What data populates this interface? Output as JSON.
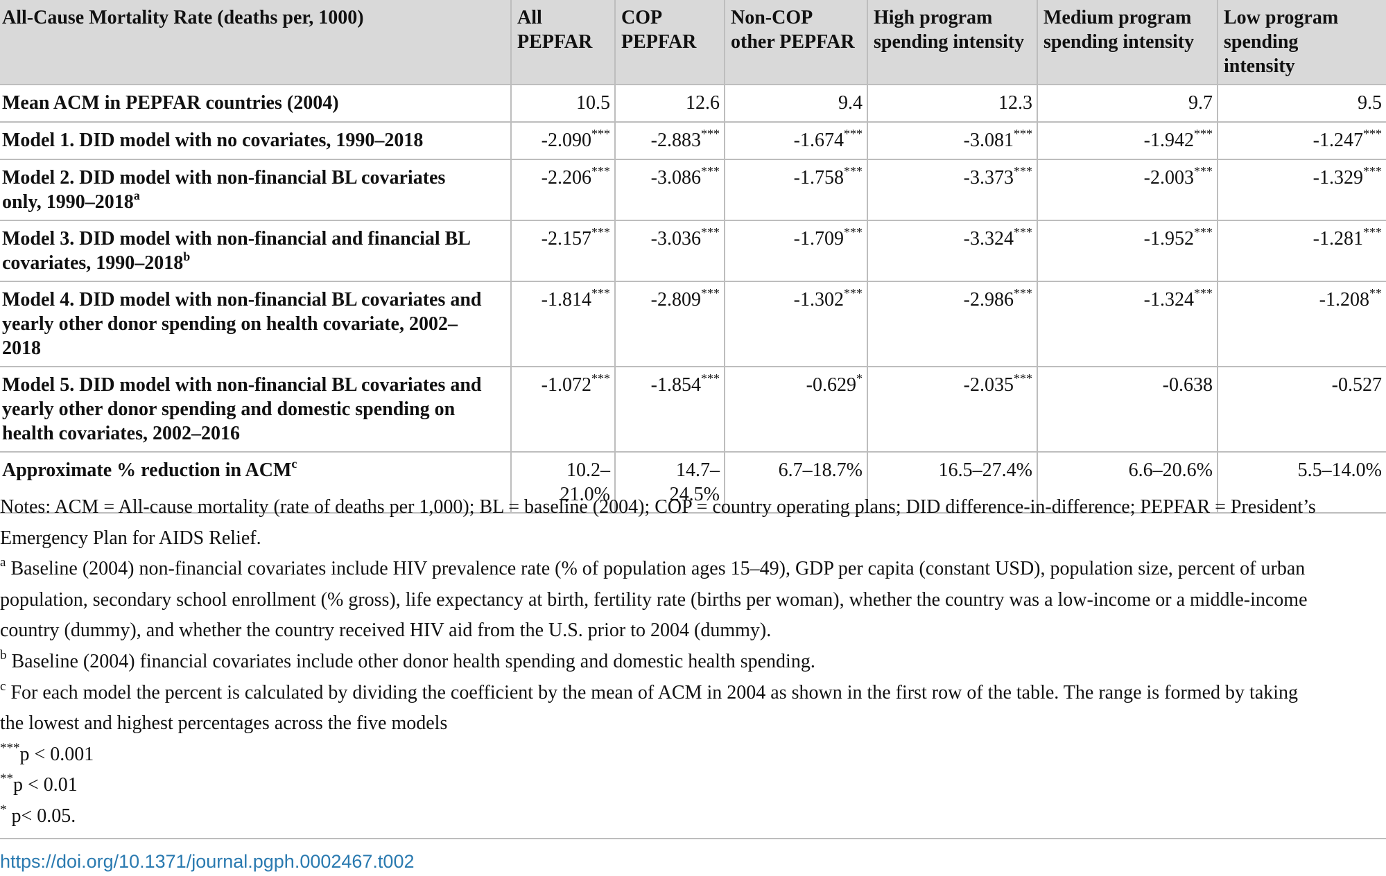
{
  "table": {
    "corner": "All-Cause Mortality Rate (deaths per, 1000)",
    "columns": [
      [
        "All",
        "PEPFAR"
      ],
      [
        "COP",
        "PEPFAR"
      ],
      [
        "Non-COP",
        "other PEPFAR"
      ],
      [
        "High program",
        "spending intensity"
      ],
      [
        "Medium program",
        "spending intensity"
      ],
      [
        "Low program",
        "spending",
        "intensity"
      ]
    ],
    "rows": [
      {
        "label": [
          "Mean ACM in PEPFAR countries (2004)"
        ],
        "label_sup": "",
        "cells": [
          {
            "v": "10.5",
            "s": ""
          },
          {
            "v": "12.6",
            "s": ""
          },
          {
            "v": "9.4",
            "s": ""
          },
          {
            "v": "12.3",
            "s": ""
          },
          {
            "v": "9.7",
            "s": ""
          },
          {
            "v": "9.5",
            "s": ""
          }
        ]
      },
      {
        "label": [
          "Model 1. DID model with no covariates, 1990–2018"
        ],
        "label_sup": "",
        "cells": [
          {
            "v": "-2.090",
            "s": "***"
          },
          {
            "v": "-2.883",
            "s": "***"
          },
          {
            "v": "-1.674",
            "s": "***"
          },
          {
            "v": "-3.081",
            "s": "***"
          },
          {
            "v": "-1.942",
            "s": "***"
          },
          {
            "v": "-1.247",
            "s": "***"
          }
        ]
      },
      {
        "label": [
          "Model 2. DID model with non-financial BL covariates",
          "only, 1990–2018"
        ],
        "label_sup": "a",
        "cells": [
          {
            "v": "-2.206",
            "s": "***"
          },
          {
            "v": "-3.086",
            "s": "***"
          },
          {
            "v": "-1.758",
            "s": "***"
          },
          {
            "v": "-3.373",
            "s": "***"
          },
          {
            "v": "-2.003",
            "s": "***"
          },
          {
            "v": "-1.329",
            "s": "***"
          }
        ]
      },
      {
        "label": [
          "Model 3. DID model with non-financial and financial BL",
          "covariates, 1990–2018"
        ],
        "label_sup": "b",
        "cells": [
          {
            "v": "-2.157",
            "s": "***"
          },
          {
            "v": "-3.036",
            "s": "***"
          },
          {
            "v": "-1.709",
            "s": "***"
          },
          {
            "v": "-3.324",
            "s": "***"
          },
          {
            "v": "-1.952",
            "s": "***"
          },
          {
            "v": "-1.281",
            "s": "***"
          }
        ]
      },
      {
        "label": [
          "Model 4. DID model with non-financial BL covariates and",
          "yearly other donor spending on health covariate, 2002–",
          "2018"
        ],
        "label_sup": "",
        "cells": [
          {
            "v": "-1.814",
            "s": "***"
          },
          {
            "v": "-2.809",
            "s": "***"
          },
          {
            "v": "-1.302",
            "s": "***"
          },
          {
            "v": "-2.986",
            "s": "***"
          },
          {
            "v": "-1.324",
            "s": "***"
          },
          {
            "v": "-1.208",
            "s": "**"
          }
        ]
      },
      {
        "label": [
          "Model 5. DID model with non-financial BL covariates and",
          "yearly other donor spending and domestic spending on",
          "health covariates, 2002–2016"
        ],
        "label_sup": "",
        "cells": [
          {
            "v": "-1.072",
            "s": "***"
          },
          {
            "v": "-1.854",
            "s": "***"
          },
          {
            "v": "-0.629",
            "s": "*"
          },
          {
            "v": "-2.035",
            "s": "***"
          },
          {
            "v": "-0.638",
            "s": ""
          },
          {
            "v": "-0.527",
            "s": ""
          }
        ]
      },
      {
        "label": [
          "Approximate % reduction in ACM"
        ],
        "label_sup": "c",
        "cells": [
          {
            "v": "10.2–\n21.0%",
            "s": ""
          },
          {
            "v": "14.7–\n24.5%",
            "s": ""
          },
          {
            "v": "6.7–18.7%",
            "s": ""
          },
          {
            "v": "16.5–27.4%",
            "s": ""
          },
          {
            "v": "6.6–20.6%",
            "s": ""
          },
          {
            "v": "5.5–14.0%",
            "s": ""
          }
        ]
      }
    ]
  },
  "notes": {
    "main_lines": [
      "Notes: ACM = All-cause mortality (rate of deaths per 1,000); BL = baseline (2004); COP = country operating plans; DID difference-in-difference; PEPFAR = President’s",
      "Emergency Plan for AIDS Relief."
    ],
    "footnotes": [
      {
        "mark": "a",
        "lines": [
          " Baseline (2004) non-financial covariates include HIV prevalence rate (% of population ages 15–49), GDP per capita (constant USD), population size, percent of urban",
          "population, secondary school enrollment (% gross), life expectancy at birth, fertility rate (births per woman), whether the country was a low-income or a middle-income",
          "country (dummy), and whether the country received HIV aid from the U.S. prior to 2004 (dummy)."
        ]
      },
      {
        "mark": "b",
        "lines": [
          " Baseline (2004) financial covariates include other donor health spending and domestic health spending."
        ]
      },
      {
        "mark": "c",
        "lines": [
          " For each model the percent is calculated by dividing the coefficient by the mean of ACM in 2004 as shown in the first row of the table. The range is formed by taking",
          "the lowest and highest percentages across the five models"
        ]
      }
    ],
    "significance": [
      {
        "mark": "***",
        "text": "p < 0.001"
      },
      {
        "mark": "**",
        "text": "p < 0.01"
      },
      {
        "mark": "*",
        "text": " p< 0.05."
      }
    ]
  },
  "doi": "https://doi.org/10.1371/journal.pgph.0002467.t002",
  "colors": {
    "header_bg": "#d9d9d9",
    "rule": "#bdbdbd",
    "link": "#2a7ab0"
  }
}
